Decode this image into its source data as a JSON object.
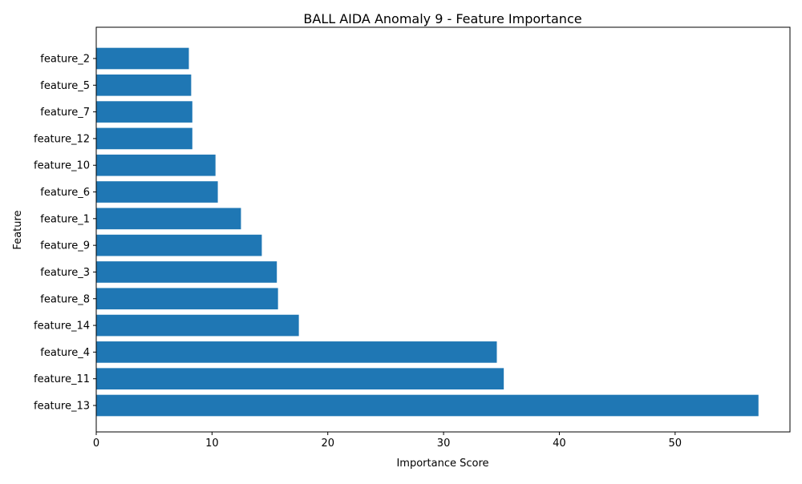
{
  "chart_data": {
    "type": "bar",
    "orientation": "horizontal",
    "title": "BALL AIDA Anomaly 9 - Feature Importance",
    "xlabel": "Importance Score",
    "ylabel": "Feature",
    "xlim": [
      0,
      60
    ],
    "xticks": [
      0,
      10,
      20,
      30,
      40,
      50
    ],
    "grid": false,
    "bar_color": "#1f77b4",
    "categories": [
      "feature_13",
      "feature_11",
      "feature_4",
      "feature_14",
      "feature_8",
      "feature_3",
      "feature_9",
      "feature_1",
      "feature_6",
      "feature_10",
      "feature_12",
      "feature_7",
      "feature_5",
      "feature_2"
    ],
    "values": [
      57.2,
      35.2,
      34.6,
      17.5,
      15.7,
      15.6,
      14.3,
      12.5,
      10.5,
      10.3,
      8.3,
      8.3,
      8.2,
      8.0
    ]
  }
}
